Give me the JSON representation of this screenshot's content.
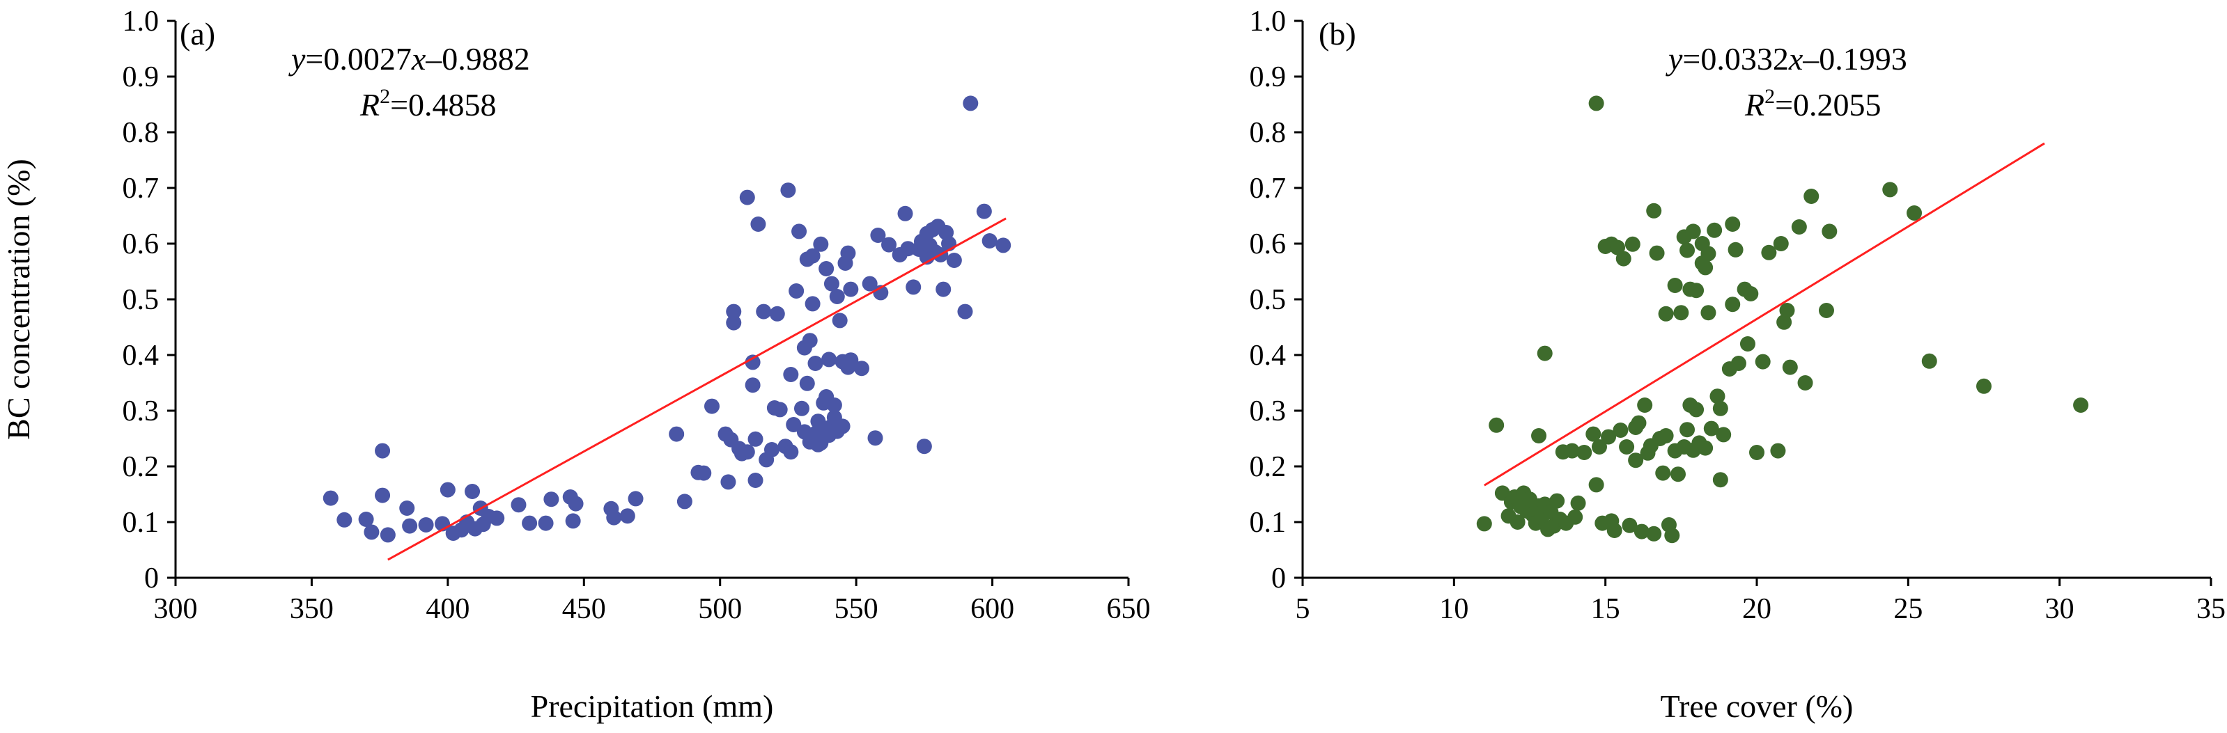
{
  "chart_data": [
    {
      "type": "scatter",
      "panel_label": "(a)",
      "xlabel": "Precipitation (mm)",
      "ylabel": "BC concentration (%)",
      "xlim": [
        300,
        650
      ],
      "ylim": [
        0,
        1.0
      ],
      "xticks": [
        "300",
        "350",
        "400",
        "450",
        "500",
        "550",
        "600",
        "650"
      ],
      "yticks": [
        "0",
        "0.1",
        "0.2",
        "0.3",
        "0.4",
        "0.5",
        "0.6",
        "0.7",
        "0.8",
        "0.9",
        "1.0"
      ],
      "grid": false,
      "marker_color": "#4a56a6",
      "trendline_color": "#ff2020",
      "equation": {
        "y": "y",
        "eq": "=0.0027",
        "x": "x",
        "rest": "–0.9882"
      },
      "r2": {
        "r": "R",
        "sup": "2",
        "rest": "=0.4858"
      },
      "trendline": {
        "x": [
          378,
          605
        ]
      },
      "points": [
        [
          357,
          0.143
        ],
        [
          362,
          0.104
        ],
        [
          370,
          0.105
        ],
        [
          372,
          0.082
        ],
        [
          376,
          0.148
        ],
        [
          376,
          0.228
        ],
        [
          378,
          0.077
        ],
        [
          385,
          0.125
        ],
        [
          386,
          0.093
        ],
        [
          392,
          0.095
        ],
        [
          398,
          0.097
        ],
        [
          400,
          0.158
        ],
        [
          402,
          0.08
        ],
        [
          405,
          0.086
        ],
        [
          407,
          0.1
        ],
        [
          409,
          0.155
        ],
        [
          410,
          0.088
        ],
        [
          412,
          0.125
        ],
        [
          413,
          0.096
        ],
        [
          415,
          0.11
        ],
        [
          418,
          0.107
        ],
        [
          426,
          0.131
        ],
        [
          430,
          0.098
        ],
        [
          436,
          0.098
        ],
        [
          438,
          0.141
        ],
        [
          445,
          0.145
        ],
        [
          446,
          0.102
        ],
        [
          447,
          0.133
        ],
        [
          460,
          0.124
        ],
        [
          461,
          0.108
        ],
        [
          466,
          0.111
        ],
        [
          469,
          0.142
        ],
        [
          484,
          0.258
        ],
        [
          487,
          0.137
        ],
        [
          492,
          0.189
        ],
        [
          494,
          0.188
        ],
        [
          497,
          0.308
        ],
        [
          502,
          0.258
        ],
        [
          503,
          0.172
        ],
        [
          504,
          0.248
        ],
        [
          505,
          0.458
        ],
        [
          505,
          0.478
        ],
        [
          507,
          0.232
        ],
        [
          508,
          0.223
        ],
        [
          510,
          0.683
        ],
        [
          510,
          0.226
        ],
        [
          512,
          0.346
        ],
        [
          512,
          0.387
        ],
        [
          513,
          0.175
        ],
        [
          513,
          0.249
        ],
        [
          514,
          0.635
        ],
        [
          516,
          0.478
        ],
        [
          517,
          0.212
        ],
        [
          519,
          0.23
        ],
        [
          520,
          0.305
        ],
        [
          521,
          0.474
        ],
        [
          522,
          0.302
        ],
        [
          524,
          0.236
        ],
        [
          525,
          0.696
        ],
        [
          526,
          0.365
        ],
        [
          526,
          0.226
        ],
        [
          527,
          0.275
        ],
        [
          528,
          0.515
        ],
        [
          529,
          0.622
        ],
        [
          530,
          0.304
        ],
        [
          531,
          0.413
        ],
        [
          531,
          0.262
        ],
        [
          532,
          0.572
        ],
        [
          532,
          0.349
        ],
        [
          533,
          0.244
        ],
        [
          533,
          0.426
        ],
        [
          534,
          0.492
        ],
        [
          534,
          0.578
        ],
        [
          535,
          0.259
        ],
        [
          535,
          0.385
        ],
        [
          536,
          0.281
        ],
        [
          536,
          0.239
        ],
        [
          537,
          0.599
        ],
        [
          537,
          0.242
        ],
        [
          538,
          0.269
        ],
        [
          538,
          0.314
        ],
        [
          539,
          0.325
        ],
        [
          539,
          0.555
        ],
        [
          540,
          0.392
        ],
        [
          540,
          0.256
        ],
        [
          541,
          0.528
        ],
        [
          541,
          0.272
        ],
        [
          542,
          0.288
        ],
        [
          542,
          0.31
        ],
        [
          543,
          0.263
        ],
        [
          543,
          0.505
        ],
        [
          544,
          0.462
        ],
        [
          545,
          0.272
        ],
        [
          545,
          0.388
        ],
        [
          546,
          0.565
        ],
        [
          547,
          0.583
        ],
        [
          547,
          0.378
        ],
        [
          548,
          0.391
        ],
        [
          548,
          0.518
        ],
        [
          552,
          0.376
        ],
        [
          555,
          0.528
        ],
        [
          557,
          0.251
        ],
        [
          558,
          0.615
        ],
        [
          559,
          0.512
        ],
        [
          562,
          0.598
        ],
        [
          566,
          0.58
        ],
        [
          568,
          0.654
        ],
        [
          569,
          0.591
        ],
        [
          571,
          0.522
        ],
        [
          573,
          0.59
        ],
        [
          574,
          0.604
        ],
        [
          575,
          0.236
        ],
        [
          576,
          0.618
        ],
        [
          576,
          0.576
        ],
        [
          577,
          0.597
        ],
        [
          578,
          0.625
        ],
        [
          579,
          0.585
        ],
        [
          580,
          0.631
        ],
        [
          581,
          0.58
        ],
        [
          582,
          0.518
        ],
        [
          583,
          0.62
        ],
        [
          584,
          0.6
        ],
        [
          586,
          0.57
        ],
        [
          590,
          0.478
        ],
        [
          592,
          0.852
        ],
        [
          597,
          0.658
        ],
        [
          599,
          0.605
        ],
        [
          604,
          0.597
        ]
      ]
    },
    {
      "type": "scatter",
      "panel_label": "(b)",
      "xlabel": "Tree cover (%)",
      "ylabel": "",
      "xlim": [
        5,
        35
      ],
      "ylim": [
        0,
        1.0
      ],
      "xticks": [
        "5",
        "10",
        "15",
        "20",
        "25",
        "30",
        "35"
      ],
      "yticks": [
        "0",
        "0.1",
        "0.2",
        "0.3",
        "0.4",
        "0.5",
        "0.6",
        "0.7",
        "0.8",
        "0.9",
        "1.0"
      ],
      "grid": false,
      "marker_color": "#3e6b2c",
      "trendline_color": "#ff2020",
      "equation": {
        "y": "y",
        "eq": "=0.0332",
        "x": "x",
        "rest": "–0.1993"
      },
      "r2": {
        "r": "R",
        "sup": "2",
        "rest": "=0.2055"
      },
      "trendline": {
        "x": [
          11,
          29.5
        ]
      },
      "points": [
        [
          11.0,
          0.097
        ],
        [
          11.4,
          0.274
        ],
        [
          11.6,
          0.152
        ],
        [
          11.8,
          0.111
        ],
        [
          11.9,
          0.136
        ],
        [
          12.0,
          0.145
        ],
        [
          12.1,
          0.1
        ],
        [
          12.2,
          0.128
        ],
        [
          12.3,
          0.152
        ],
        [
          12.4,
          0.12
        ],
        [
          12.5,
          0.141
        ],
        [
          12.6,
          0.113
        ],
        [
          12.7,
          0.098
        ],
        [
          12.8,
          0.255
        ],
        [
          12.8,
          0.129
        ],
        [
          12.9,
          0.108
        ],
        [
          13.0,
          0.132
        ],
        [
          13.0,
          0.403
        ],
        [
          13.1,
          0.087
        ],
        [
          13.2,
          0.118
        ],
        [
          13.3,
          0.093
        ],
        [
          13.4,
          0.138
        ],
        [
          13.5,
          0.105
        ],
        [
          13.6,
          0.226
        ],
        [
          13.7,
          0.098
        ],
        [
          13.9,
          0.228
        ],
        [
          14.0,
          0.109
        ],
        [
          14.1,
          0.134
        ],
        [
          14.3,
          0.225
        ],
        [
          14.6,
          0.258
        ],
        [
          14.7,
          0.852
        ],
        [
          14.7,
          0.167
        ],
        [
          14.8,
          0.235
        ],
        [
          14.9,
          0.098
        ],
        [
          15.0,
          0.595
        ],
        [
          15.1,
          0.253
        ],
        [
          15.2,
          0.102
        ],
        [
          15.2,
          0.599
        ],
        [
          15.3,
          0.085
        ],
        [
          15.4,
          0.593
        ],
        [
          15.5,
          0.265
        ],
        [
          15.6,
          0.573
        ],
        [
          15.7,
          0.235
        ],
        [
          15.8,
          0.094
        ],
        [
          15.9,
          0.599
        ],
        [
          16.0,
          0.27
        ],
        [
          16.0,
          0.211
        ],
        [
          16.1,
          0.278
        ],
        [
          16.2,
          0.083
        ],
        [
          16.3,
          0.31
        ],
        [
          16.4,
          0.224
        ],
        [
          16.5,
          0.237
        ],
        [
          16.6,
          0.079
        ],
        [
          16.6,
          0.659
        ],
        [
          16.7,
          0.583
        ],
        [
          16.8,
          0.25
        ],
        [
          16.9,
          0.188
        ],
        [
          17.0,
          0.474
        ],
        [
          17.0,
          0.255
        ],
        [
          17.1,
          0.095
        ],
        [
          17.2,
          0.076
        ],
        [
          17.3,
          0.228
        ],
        [
          17.3,
          0.525
        ],
        [
          17.4,
          0.186
        ],
        [
          17.5,
          0.476
        ],
        [
          17.6,
          0.612
        ],
        [
          17.6,
          0.235
        ],
        [
          17.7,
          0.588
        ],
        [
          17.7,
          0.266
        ],
        [
          17.8,
          0.518
        ],
        [
          17.8,
          0.31
        ],
        [
          17.9,
          0.622
        ],
        [
          17.9,
          0.229
        ],
        [
          18.0,
          0.302
        ],
        [
          18.0,
          0.516
        ],
        [
          18.1,
          0.242
        ],
        [
          18.2,
          0.6
        ],
        [
          18.2,
          0.565
        ],
        [
          18.3,
          0.557
        ],
        [
          18.3,
          0.233
        ],
        [
          18.4,
          0.582
        ],
        [
          18.4,
          0.476
        ],
        [
          18.5,
          0.268
        ],
        [
          18.6,
          0.624
        ],
        [
          18.7,
          0.326
        ],
        [
          18.8,
          0.304
        ],
        [
          18.8,
          0.176
        ],
        [
          18.9,
          0.257
        ],
        [
          19.1,
          0.375
        ],
        [
          19.2,
          0.635
        ],
        [
          19.2,
          0.491
        ],
        [
          19.3,
          0.589
        ],
        [
          19.4,
          0.385
        ],
        [
          19.6,
          0.518
        ],
        [
          19.7,
          0.42
        ],
        [
          19.8,
          0.51
        ],
        [
          20.0,
          0.225
        ],
        [
          20.2,
          0.388
        ],
        [
          20.4,
          0.584
        ],
        [
          20.7,
          0.228
        ],
        [
          20.8,
          0.6
        ],
        [
          20.9,
          0.459
        ],
        [
          21.0,
          0.48
        ],
        [
          21.1,
          0.378
        ],
        [
          21.4,
          0.63
        ],
        [
          21.6,
          0.35
        ],
        [
          21.8,
          0.685
        ],
        [
          22.3,
          0.48
        ],
        [
          22.4,
          0.622
        ],
        [
          24.4,
          0.697
        ],
        [
          25.2,
          0.655
        ],
        [
          25.7,
          0.389
        ],
        [
          27.5,
          0.344
        ],
        [
          30.7,
          0.31
        ]
      ]
    }
  ]
}
